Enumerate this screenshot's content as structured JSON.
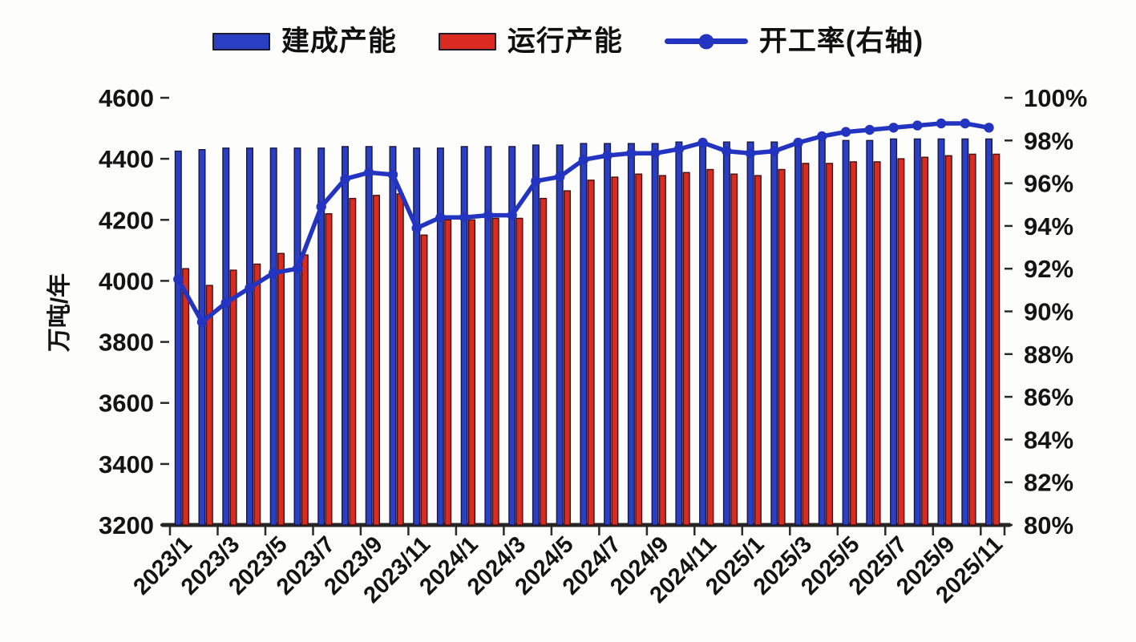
{
  "legend": {
    "position": "top",
    "items": [
      {
        "label": "建成产能",
        "type": "bar",
        "color": "#2b3fc4"
      },
      {
        "label": "运行产能",
        "type": "bar",
        "color": "#d92b20"
      },
      {
        "label": "开工率(右轴)",
        "type": "line",
        "color": "#2334c0"
      }
    ]
  },
  "chart_data": {
    "type": "bar+line",
    "title": "",
    "grid": false,
    "left_axis": {
      "title": "万吨/年",
      "min": 3200,
      "max": 4600,
      "ticks": [
        4600,
        4400,
        4200,
        4000,
        3800,
        3600,
        3400,
        3200
      ]
    },
    "right_axis": {
      "min": 80,
      "max": 100,
      "ticks": [
        "100%",
        "98%",
        "96%",
        "94%",
        "92%",
        "90%",
        "88%",
        "86%",
        "84%",
        "82%",
        "80%"
      ],
      "tick_values": [
        100,
        98,
        96,
        94,
        92,
        90,
        88,
        86,
        84,
        82,
        80
      ]
    },
    "categories": [
      "2023/1",
      "2023/2",
      "2023/3",
      "2023/4",
      "2023/5",
      "2023/6",
      "2023/7",
      "2023/8",
      "2023/9",
      "2023/10",
      "2023/11",
      "2023/12",
      "2024/1",
      "2024/2",
      "2024/3",
      "2024/4",
      "2024/5",
      "2024/6",
      "2024/7",
      "2024/8",
      "2024/9",
      "2024/10",
      "2024/11",
      "2024/12",
      "2025/1",
      "2025/2",
      "2025/3",
      "2025/4",
      "2025/5",
      "2025/6",
      "2025/7",
      "2025/8",
      "2025/9",
      "2025/10",
      "2025/11"
    ],
    "x_tick_labels": [
      "2023/1",
      "2023/3",
      "2023/5",
      "2023/7",
      "2023/9",
      "2023/11",
      "2024/1",
      "2024/3",
      "2024/5",
      "2024/7",
      "2024/9",
      "2024/11",
      "2025/1",
      "2025/3",
      "2025/5",
      "2025/7",
      "2025/9",
      "2025/11"
    ],
    "series": [
      {
        "name": "建成产能",
        "type": "bar",
        "axis": "left",
        "color": "#2b3fc4",
        "edge": "#181845",
        "values": [
          4425,
          4430,
          4435,
          4435,
          4435,
          4435,
          4435,
          4440,
          4440,
          4440,
          4435,
          4435,
          4440,
          4440,
          4440,
          4445,
          4445,
          4450,
          4450,
          4450,
          4450,
          4455,
          4455,
          4455,
          4455,
          4455,
          4460,
          4460,
          4460,
          4460,
          4465,
          4465,
          4465,
          4465,
          4465
        ]
      },
      {
        "name": "运行产能",
        "type": "bar",
        "axis": "left",
        "color": "#d92b20",
        "edge": "#471010",
        "values": [
          4040,
          3985,
          4035,
          4055,
          4090,
          4085,
          4220,
          4270,
          4280,
          4285,
          4150,
          4200,
          4200,
          4205,
          4205,
          4270,
          4295,
          4330,
          4340,
          4350,
          4345,
          4355,
          4365,
          4350,
          4345,
          4365,
          4385,
          4385,
          4390,
          4390,
          4400,
          4405,
          4410,
          4415,
          4415
        ]
      },
      {
        "name": "开工率(右轴)",
        "type": "line",
        "axis": "right",
        "color": "#2334c0",
        "values": [
          91.5,
          89.5,
          90.4,
          91.1,
          91.8,
          92.0,
          94.9,
          96.2,
          96.5,
          96.4,
          93.9,
          94.4,
          94.4,
          94.5,
          94.5,
          96.1,
          96.3,
          97.1,
          97.3,
          97.4,
          97.4,
          97.6,
          97.9,
          97.5,
          97.4,
          97.5,
          97.9,
          98.2,
          98.4,
          98.5,
          98.6,
          98.7,
          98.8,
          98.8,
          98.6
        ]
      }
    ]
  }
}
